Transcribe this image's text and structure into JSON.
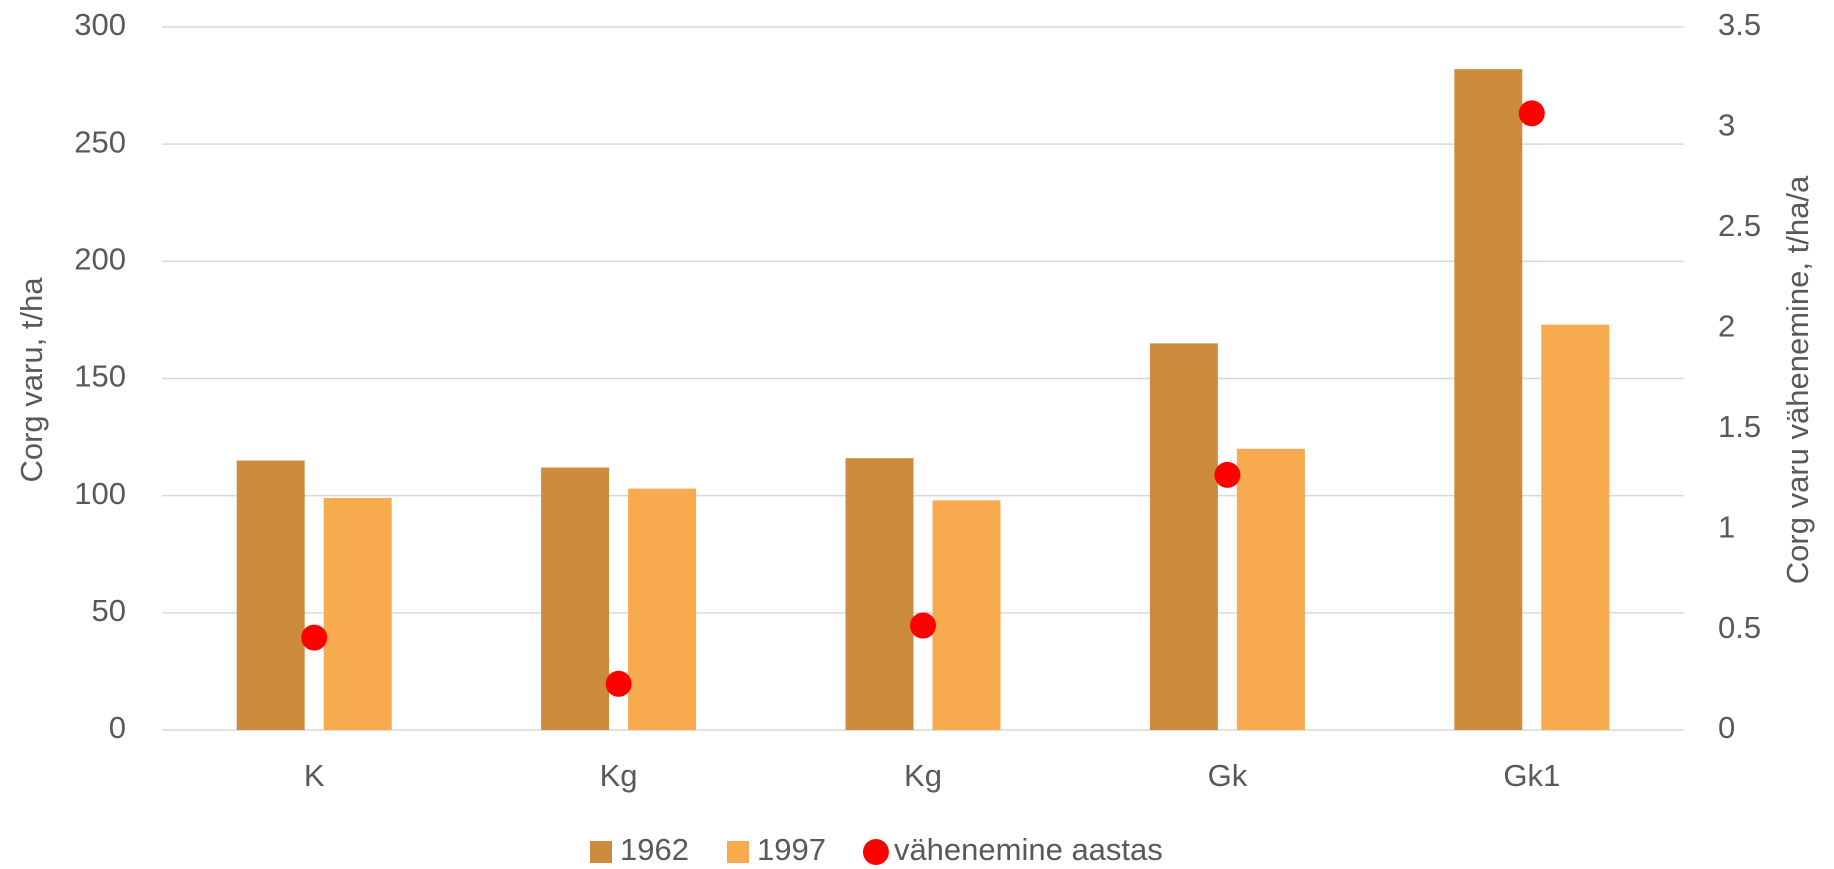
{
  "chart_data": {
    "type": "bar",
    "categories": [
      "K",
      "Kg",
      "Kg",
      "Gk",
      "Gk1"
    ],
    "series": [
      {
        "name": "1962",
        "type": "bar",
        "color": "#cd8b3e",
        "values": [
          115,
          112,
          116,
          165,
          282
        ]
      },
      {
        "name": "1997",
        "type": "bar",
        "color": "#f7ab4e",
        "values": [
          99,
          103,
          98,
          120,
          173
        ]
      },
      {
        "name": "vähenemine aastas",
        "type": "scatter",
        "axis": "y2",
        "color": "#ff0000",
        "values": [
          0.46,
          0.23,
          0.52,
          1.27,
          3.07
        ]
      }
    ],
    "ylabel": "Corg varu, t/ha",
    "y2label": "Corg varu vähenemine, t/ha/a",
    "ylim": [
      0,
      300
    ],
    "yticks": [
      0,
      50,
      100,
      150,
      200,
      250,
      300
    ],
    "y2lim": [
      0,
      3.5
    ],
    "y2ticks": [
      0,
      0.5,
      1,
      1.5,
      2,
      2.5,
      3,
      3.5
    ],
    "grid": true,
    "legend": "bottom"
  }
}
